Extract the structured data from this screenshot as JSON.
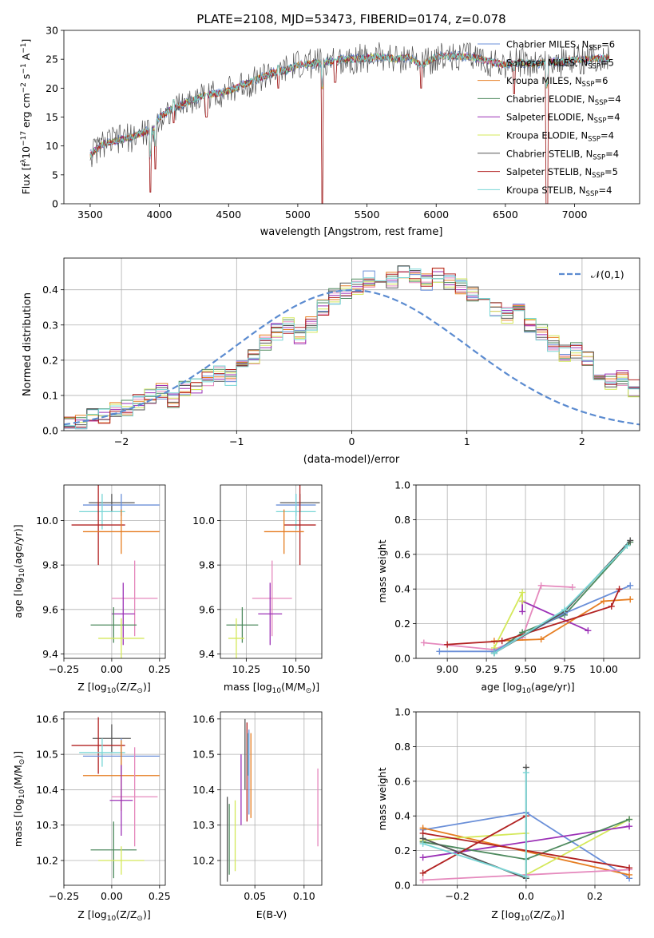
{
  "chart_data": [
    {
      "type": "line",
      "title": "PLATE=2108, MJD=53473, FIBERID=0174, z=0.078",
      "xlabel": "wavelength [Angstrom, rest frame]",
      "ylabel_parts": [
        "Flux [f",
        "λ",
        "10",
        "−17",
        " erg cm",
        "−2",
        " s",
        "−1",
        " A",
        "−1",
        "]"
      ],
      "xlim": [
        3310,
        7470
      ],
      "ylim": [
        0,
        30
      ],
      "xticks": [
        3500,
        4000,
        4500,
        5000,
        5500,
        6000,
        6500,
        7000
      ],
      "yticks": [
        0,
        5,
        10,
        15,
        20,
        25,
        30
      ],
      "legend_position": "upper right",
      "series": [
        {
          "name": "Chabrier MILES",
          "nssp": "6",
          "color": "#6a8fd8"
        },
        {
          "name": "Salpeter MILES",
          "nssp": "5",
          "color": "#e589bd"
        },
        {
          "name": "Kroupa MILES",
          "nssp": "6",
          "color": "#e67e22"
        },
        {
          "name": "Chabrier ELODIE",
          "nssp": "4",
          "color": "#4e8a5e"
        },
        {
          "name": "Salpeter ELODIE",
          "nssp": "4",
          "color": "#9b30b6"
        },
        {
          "name": "Kroupa ELODIE",
          "nssp": "4",
          "color": "#d4e85a"
        },
        {
          "name": "Chabrier STELIB",
          "nssp": "4",
          "color": "#555555"
        },
        {
          "name": "Salpeter STELIB",
          "nssp": "5",
          "color": "#b22222"
        },
        {
          "name": "Kroupa STELIB",
          "nssp": "4",
          "color": "#78d6d6"
        }
      ],
      "continuum": {
        "x": [
          3500,
          3600,
          3700,
          3800,
          3900,
          3950,
          4000,
          4100,
          4200,
          4300,
          4400,
          4500,
          4600,
          4700,
          4800,
          4900,
          5000,
          5100,
          5200,
          5300,
          5400,
          5500,
          5600,
          5700,
          5800,
          5900,
          6000,
          6100,
          6200,
          6300,
          6400,
          6500,
          6600,
          6700,
          6800,
          6900,
          7000,
          7100,
          7200
        ],
        "y": [
          8.5,
          10.5,
          11,
          11.5,
          12.5,
          12.5,
          15,
          16.5,
          17.5,
          18.5,
          19,
          19.5,
          20.5,
          21.5,
          22.5,
          23,
          24,
          24.2,
          24.5,
          25,
          25,
          25.2,
          25.5,
          25,
          25.3,
          24,
          25.5,
          25.5,
          25.5,
          25.2,
          24.5,
          24,
          24.5,
          24.2,
          24.5,
          24.5,
          25,
          25,
          25.2
        ]
      },
      "absorption_features": [
        {
          "x": 3934,
          "y": 2
        },
        {
          "x": 3969,
          "y": 6
        },
        {
          "x": 4102,
          "y": 14
        },
        {
          "x": 4340,
          "y": 15
        },
        {
          "x": 4861,
          "y": 20
        },
        {
          "x": 5175,
          "y": 0
        },
        {
          "x": 5270,
          "y": 21
        },
        {
          "x": 5893,
          "y": 20
        },
        {
          "x": 6563,
          "y": 19
        },
        {
          "x": 6800,
          "y": 0
        }
      ]
    },
    {
      "type": "histogram",
      "xlabel": "(data-model)/error",
      "ylabel": "Normed distribution",
      "xlim": [
        -2.5,
        2.5
      ],
      "ylim": [
        0,
        0.49
      ],
      "xticks": [
        -2,
        -1,
        0,
        1,
        2
      ],
      "yticks": [
        0.0,
        0.1,
        0.2,
        0.3,
        0.4
      ],
      "bin_edges_start": -2.5,
      "bin_width": 0.1,
      "reference_curve": {
        "name": "𝒩(0,1)",
        "color": "#5b8bd0",
        "linestyle": "dashed"
      },
      "legend_position": "upper right",
      "base_distribution": [
        0.02,
        0.025,
        0.04,
        0.045,
        0.055,
        0.065,
        0.08,
        0.095,
        0.11,
        0.09,
        0.12,
        0.13,
        0.15,
        0.16,
        0.15,
        0.18,
        0.21,
        0.25,
        0.28,
        0.3,
        0.27,
        0.3,
        0.35,
        0.38,
        0.4,
        0.41,
        0.43,
        0.44,
        0.43,
        0.45,
        0.44,
        0.42,
        0.44,
        0.42,
        0.41,
        0.39,
        0.37,
        0.35,
        0.33,
        0.34,
        0.3,
        0.28,
        0.25,
        0.22,
        0.23,
        0.2,
        0.16,
        0.14,
        0.15,
        0.12,
        0.13,
        0.1,
        0.09,
        0.08,
        0.06,
        0.05,
        0.045,
        0.04,
        0.03,
        0.025,
        0.02,
        0.025,
        0.02
      ],
      "series_colors": [
        "#6a8fd8",
        "#e589bd",
        "#e67e22",
        "#4e8a5e",
        "#9b30b6",
        "#d4e85a",
        "#555555",
        "#b22222",
        "#78d6d6"
      ]
    },
    {
      "type": "scatter",
      "xlabel_parts": [
        "Z [log",
        "10",
        "(Z/Z",
        "⊙",
        ")]"
      ],
      "ylabel_parts": [
        "age  [log",
        "10",
        "(age/yr)]"
      ],
      "xlim": [
        -0.25,
        0.28
      ],
      "ylim": [
        9.38,
        10.16
      ],
      "xticks": [
        "−0.25",
        "0.00",
        "0.25"
      ],
      "xtick_values": [
        -0.25,
        0.0,
        0.25
      ],
      "yticks": [
        9.4,
        9.6,
        9.8,
        10.0
      ],
      "errorbars": [
        {
          "color": "#555555",
          "x": 0.0,
          "y": 10.08,
          "xerr": 0.12,
          "yerr": 0.04
        },
        {
          "color": "#6a8fd8",
          "x": 0.05,
          "y": 10.07,
          "xerr": 0.2,
          "yerr": 0.05
        },
        {
          "color": "#78d6d6",
          "x": -0.05,
          "y": 10.04,
          "xerr": 0.12,
          "yerr": 0.08
        },
        {
          "color": "#b22222",
          "x": -0.07,
          "y": 9.98,
          "xerr": 0.14,
          "yerr": 0.18
        },
        {
          "color": "#e67e22",
          "x": 0.05,
          "y": 9.95,
          "xerr": 0.2,
          "yerr": 0.1
        },
        {
          "color": "#e589bd",
          "x": 0.12,
          "y": 9.65,
          "xerr": 0.12,
          "yerr": 0.17
        },
        {
          "color": "#9b30b6",
          "x": 0.06,
          "y": 9.58,
          "xerr": 0.06,
          "yerr": 0.14
        },
        {
          "color": "#4e8a5e",
          "x": 0.01,
          "y": 9.53,
          "xerr": 0.12,
          "yerr": 0.08
        },
        {
          "color": "#d4e85a",
          "x": 0.05,
          "y": 9.47,
          "xerr": 0.12,
          "yerr": 0.09
        }
      ]
    },
    {
      "type": "scatter",
      "xlabel_parts": [
        "mass [log",
        "10",
        "(M/M",
        "⊙",
        ")]"
      ],
      "xlim": [
        10.12,
        10.63
      ],
      "ylim": [
        9.38,
        10.16
      ],
      "xticks": [
        "10.25",
        "10.50"
      ],
      "xtick_values": [
        10.25,
        10.5
      ],
      "yticks": [
        9.4,
        9.6,
        9.8,
        10.0
      ],
      "errorbars": [
        {
          "color": "#555555",
          "x": 10.52,
          "y": 10.08,
          "xerr": 0.1,
          "yerr": 0.04
        },
        {
          "color": "#6a8fd8",
          "x": 10.5,
          "y": 10.07,
          "xerr": 0.1,
          "yerr": 0.05
        },
        {
          "color": "#78d6d6",
          "x": 10.5,
          "y": 10.04,
          "xerr": 0.1,
          "yerr": 0.08
        },
        {
          "color": "#b22222",
          "x": 10.52,
          "y": 9.98,
          "xerr": 0.08,
          "yerr": 0.18
        },
        {
          "color": "#e67e22",
          "x": 10.44,
          "y": 9.95,
          "xerr": 0.1,
          "yerr": 0.1
        },
        {
          "color": "#e589bd",
          "x": 10.38,
          "y": 9.65,
          "xerr": 0.1,
          "yerr": 0.17
        },
        {
          "color": "#9b30b6",
          "x": 10.37,
          "y": 9.58,
          "xerr": 0.06,
          "yerr": 0.14
        },
        {
          "color": "#4e8a5e",
          "x": 10.23,
          "y": 9.53,
          "xerr": 0.08,
          "yerr": 0.08
        },
        {
          "color": "#d4e85a",
          "x": 10.2,
          "y": 9.47,
          "xerr": 0.04,
          "yerr": 0.09
        }
      ]
    },
    {
      "type": "line",
      "xlabel_parts": [
        "age  [log",
        "10",
        "(age/yr)]"
      ],
      "ylabel": "mass weight",
      "xlim": [
        8.8,
        10.23
      ],
      "ylim": [
        0,
        1
      ],
      "xticks": [
        9.0,
        9.25,
        9.5,
        9.75,
        10.0
      ],
      "xtick_labels": [
        "9.00",
        "9.25",
        "9.50",
        "9.75",
        "10.00"
      ],
      "yticks": [
        0.0,
        0.2,
        0.4,
        0.6,
        0.8,
        1.0
      ],
      "series": [
        {
          "color": "#e589bd",
          "x": [
            8.85,
            9.3,
            9.48,
            9.6,
            9.8
          ],
          "y": [
            0.09,
            0.05,
            0.12,
            0.42,
            0.41
          ]
        },
        {
          "color": "#9b30b6",
          "x": [
            9.48,
            9.48,
            9.9
          ],
          "y": [
            0.27,
            0.33,
            0.16
          ]
        },
        {
          "color": "#e67e22",
          "x": [
            9.3,
            9.6,
            10.0,
            10.17
          ],
          "y": [
            0.1,
            0.11,
            0.33,
            0.34
          ]
        },
        {
          "color": "#d4e85a",
          "x": [
            9.3,
            9.48,
            9.48
          ],
          "y": [
            0.06,
            0.38,
            0.33
          ]
        },
        {
          "color": "#4e8a5e",
          "x": [
            9.3,
            9.48,
            9.75,
            10.17
          ],
          "y": [
            0.03,
            0.15,
            0.25,
            0.67
          ]
        },
        {
          "color": "#6a8fd8",
          "x": [
            8.95,
            9.3,
            9.75,
            10.17
          ],
          "y": [
            0.04,
            0.04,
            0.26,
            0.42
          ]
        },
        {
          "color": "#b22222",
          "x": [
            9.0,
            9.35,
            10.05,
            10.1
          ],
          "y": [
            0.08,
            0.1,
            0.3,
            0.4
          ]
        },
        {
          "color": "#555555",
          "x": [
            9.3,
            9.75,
            10.17
          ],
          "y": [
            0.03,
            0.27,
            0.68
          ]
        },
        {
          "color": "#78d6d6",
          "x": [
            9.3,
            9.75,
            10.15
          ],
          "y": [
            0.03,
            0.28,
            0.65
          ]
        }
      ]
    },
    {
      "type": "scatter",
      "xlabel_parts": [
        "Z [log",
        "10",
        "(Z/Z",
        "⊙",
        ")]"
      ],
      "ylabel_parts": [
        "mass [log",
        "10",
        "(M/M",
        "⊙",
        ")]"
      ],
      "xlim": [
        -0.25,
        0.28
      ],
      "ylim": [
        10.13,
        10.62
      ],
      "xticks": [
        "−0.25",
        "0.00",
        "0.25"
      ],
      "xtick_values": [
        -0.25,
        0.0,
        0.25
      ],
      "yticks": [
        10.2,
        10.3,
        10.4,
        10.5,
        10.6
      ],
      "errorbars": [
        {
          "color": "#555555",
          "x": 0.0,
          "y": 10.545,
          "xerr": 0.1,
          "yerr": 0.04
        },
        {
          "color": "#b22222",
          "x": -0.07,
          "y": 10.525,
          "xerr": 0.14,
          "yerr": 0.08
        },
        {
          "color": "#78d6d6",
          "x": -0.05,
          "y": 10.505,
          "xerr": 0.12,
          "yerr": 0.04
        },
        {
          "color": "#6a8fd8",
          "x": 0.05,
          "y": 10.495,
          "xerr": 0.2,
          "yerr": 0.05
        },
        {
          "color": "#e67e22",
          "x": 0.05,
          "y": 10.44,
          "xerr": 0.2,
          "yerr": 0.1
        },
        {
          "color": "#e589bd",
          "x": 0.12,
          "y": 10.38,
          "xerr": 0.12,
          "yerr": 0.14
        },
        {
          "color": "#9b30b6",
          "x": 0.05,
          "y": 10.37,
          "xerr": 0.06,
          "yerr": 0.1
        },
        {
          "color": "#4e8a5e",
          "x": 0.01,
          "y": 10.23,
          "xerr": 0.12,
          "yerr": 0.08
        },
        {
          "color": "#d4e85a",
          "x": 0.05,
          "y": 10.2,
          "xerr": 0.12,
          "yerr": 0.04
        }
      ]
    },
    {
      "type": "scatter",
      "xlabel": "E(B-V)",
      "xlim": [
        0.015,
        0.118
      ],
      "ylim": [
        10.13,
        10.62
      ],
      "xticks": [
        "0.05",
        "0.10"
      ],
      "xtick_values": [
        0.05,
        0.1
      ],
      "yticks": [
        10.2,
        10.3,
        10.4,
        10.5,
        10.6
      ],
      "errorbars": [
        {
          "color": "#555555",
          "x": 0.022,
          "y": 10.26,
          "yerr": 0.12
        },
        {
          "color": "#4e8a5e",
          "x": 0.024,
          "y": 10.26,
          "yerr": 0.1
        },
        {
          "color": "#d4e85a",
          "x": 0.03,
          "y": 10.27,
          "yerr": 0.1
        },
        {
          "color": "#9b30b6",
          "x": 0.036,
          "y": 10.4,
          "yerr": 0.1
        },
        {
          "color": "#555555",
          "x": 0.04,
          "y": 10.5,
          "yerr": 0.1
        },
        {
          "color": "#b22222",
          "x": 0.042,
          "y": 10.45,
          "yerr": 0.14
        },
        {
          "color": "#78d6d6",
          "x": 0.043,
          "y": 10.5,
          "yerr": 0.06
        },
        {
          "color": "#6a8fd8",
          "x": 0.044,
          "y": 10.45,
          "yerr": 0.12
        },
        {
          "color": "#e67e22",
          "x": 0.046,
          "y": 10.44,
          "yerr": 0.12
        },
        {
          "color": "#e589bd",
          "x": 0.114,
          "y": 10.35,
          "yerr": 0.11
        }
      ]
    },
    {
      "type": "line",
      "xlabel_parts": [
        "Z [log",
        "10",
        "(Z/Z",
        "⊙",
        ")]"
      ],
      "ylabel": "mass weight",
      "xlim": [
        -0.32,
        0.33
      ],
      "ylim": [
        0,
        1
      ],
      "xticks": [
        -0.2,
        0.0,
        0.2
      ],
      "xtick_labels": [
        "−0.2",
        "0.0",
        "0.2"
      ],
      "yticks": [
        0.0,
        0.2,
        0.4,
        0.6,
        0.8,
        1.0
      ],
      "series": [
        {
          "color": "#6a8fd8",
          "x": [
            -0.3,
            0.0,
            0.3
          ],
          "y": [
            0.32,
            0.42,
            0.04
          ]
        },
        {
          "color": "#e67e22",
          "x": [
            -0.3,
            0.3
          ],
          "y": [
            0.33,
            0.06
          ]
        },
        {
          "color": "#d4e85a",
          "x": [
            -0.3,
            0.0,
            0.0,
            0.3
          ],
          "y": [
            0.26,
            0.3,
            0.06,
            0.38
          ]
        },
        {
          "color": "#9b30b6",
          "x": [
            -0.3,
            0.3
          ],
          "y": [
            0.16,
            0.34
          ]
        },
        {
          "color": "#4e8a5e",
          "x": [
            -0.3,
            0.0,
            0.3
          ],
          "y": [
            0.25,
            0.15,
            0.38
          ]
        },
        {
          "color": "#e589bd",
          "x": [
            -0.3,
            0.3
          ],
          "y": [
            0.03,
            0.09
          ]
        },
        {
          "color": "#b22222",
          "x": [
            -0.3,
            0.3
          ],
          "y": [
            0.3,
            0.1
          ]
        },
        {
          "color": "#b22222",
          "x": [
            -0.3,
            0.0
          ],
          "y": [
            0.07,
            0.4
          ]
        },
        {
          "color": "#555555",
          "x": [
            -0.3,
            0.0,
            0.0
          ],
          "y": [
            0.27,
            0.04,
            0.68
          ]
        },
        {
          "color": "#78d6d6",
          "x": [
            -0.3,
            0.0,
            0.0
          ],
          "y": [
            0.24,
            0.05,
            0.65
          ]
        }
      ]
    }
  ]
}
